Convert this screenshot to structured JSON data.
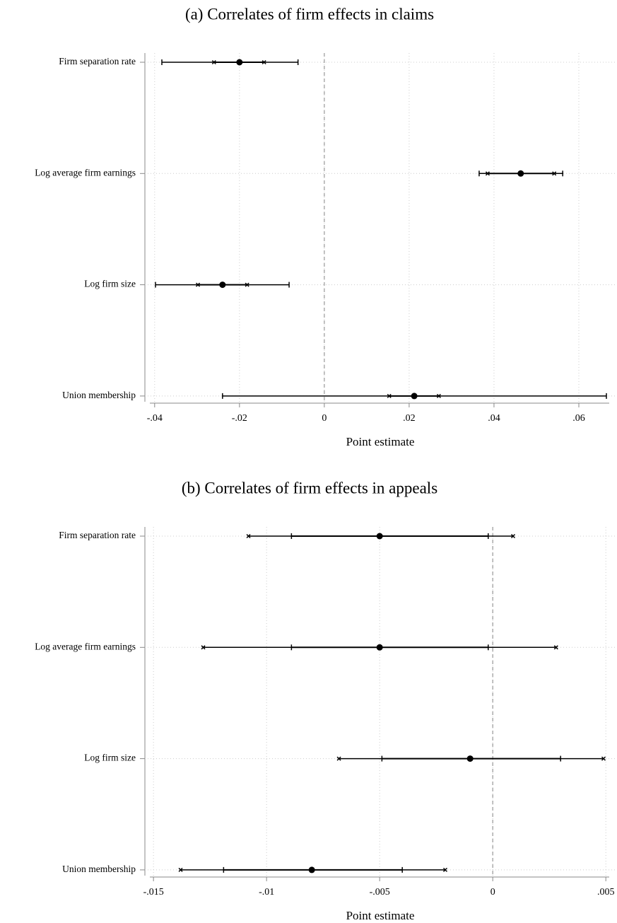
{
  "chart_data": [
    {
      "type": "coefplot",
      "title": "(a) Correlates of firm effects in claims",
      "x_label": "Point estimate",
      "categories": [
        "Firm separation rate",
        "Log average firm earnings",
        "Log firm size",
        "Union membership"
      ],
      "values": [
        -0.02,
        0.0463,
        -0.024,
        0.0212
      ],
      "ci_outer": [
        [
          -0.0383,
          -0.0062
        ],
        [
          0.0365,
          0.0562
        ],
        [
          -0.0398,
          -0.0083
        ],
        [
          -0.024,
          0.0665
        ]
      ],
      "ci_inner": [
        [
          -0.026,
          -0.0142
        ],
        [
          0.0385,
          0.0542
        ],
        [
          -0.0298,
          -0.0182
        ],
        [
          0.0153,
          0.027
        ]
      ],
      "outer_marker": "cap",
      "inner_marker": "cross",
      "color": "#000000",
      "xlim": [
        -0.0423,
        0.0685
      ],
      "xticks": [
        {
          "value": -0.04,
          "label": "-.04"
        },
        {
          "value": -0.02,
          "label": "-.02"
        },
        0,
        {
          "value": 0.02,
          "label": ".02"
        },
        {
          "value": 0.04,
          "label": ".04"
        },
        {
          "value": 0.06,
          "label": ".06"
        }
      ],
      "reference_line": 0,
      "grid": true
    },
    {
      "type": "coefplot",
      "title": "(b) Correlates of firm effects in appeals",
      "x_label": "Point estimate",
      "categories": [
        "Firm separation rate",
        "Log average firm earnings",
        "Log firm size",
        "Union membership"
      ],
      "values": [
        -0.005,
        -0.005,
        -0.001,
        -0.008
      ],
      "ci_outer": [
        [
          -0.0108,
          0.0009
        ],
        [
          -0.0128,
          0.0028
        ],
        [
          -0.0068,
          0.0049
        ],
        [
          -0.0138,
          -0.0021
        ]
      ],
      "ci_inner": [
        [
          -0.0089,
          -0.0002
        ],
        [
          -0.0089,
          -0.0002
        ],
        [
          -0.0049,
          0.003
        ],
        [
          -0.0119,
          -0.004
        ]
      ],
      "outer_marker": "cross",
      "inner_marker": "cap",
      "color": "#000000",
      "xlim": [
        -0.01538,
        0.0054
      ],
      "xticks": [
        {
          "value": -0.015,
          "label": "-.015"
        },
        {
          "value": -0.01,
          "label": "-.01"
        },
        {
          "value": -0.005,
          "label": "-.005"
        },
        0,
        {
          "value": 0.005,
          "label": ".005"
        }
      ],
      "reference_line": 0,
      "grid": true
    }
  ]
}
